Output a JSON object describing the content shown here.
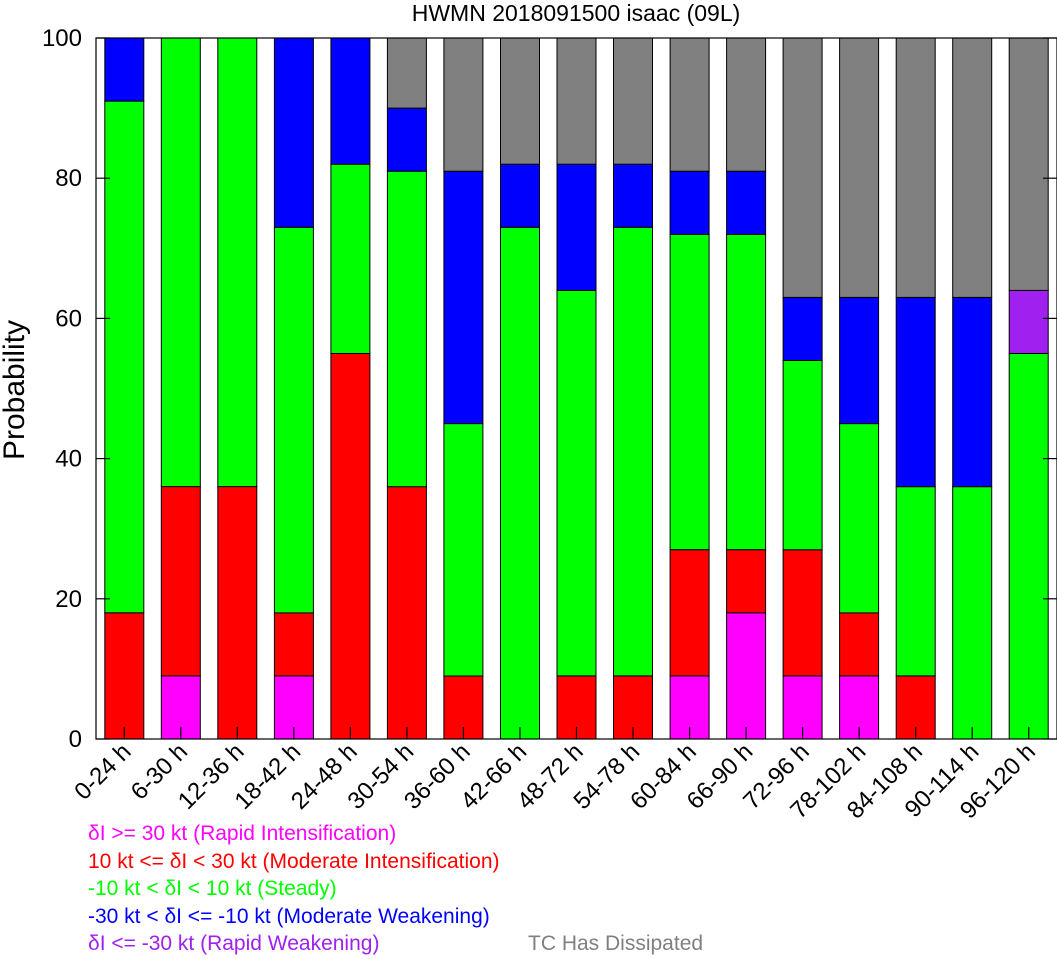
{
  "chart_data": {
    "type": "bar",
    "stacked": true,
    "title": "HWMN 2018091500 isaac (09L)",
    "xlabel": "",
    "ylabel": "Probability",
    "ylim": [
      0,
      100
    ],
    "yticks": [
      "0",
      "20",
      "40",
      "60",
      "80",
      "100"
    ],
    "grid": false,
    "categories": [
      "0-24 h",
      "6-30 h",
      "12-36 h",
      "18-42 h",
      "24-48 h",
      "30-54 h",
      "36-60 h",
      "42-66 h",
      "48-72 h",
      "54-78 h",
      "60-84 h",
      "66-90 h",
      "72-96 h",
      "78-102 h",
      "84-108 h",
      "90-114 h",
      "96-120 h"
    ],
    "series": [
      {
        "name": "δI >= 30 kt (Rapid Intensification)",
        "color": "#ff00ff",
        "values": [
          0,
          9,
          0,
          9,
          0,
          0,
          0,
          0,
          0,
          0,
          9,
          18,
          9,
          9,
          0,
          0,
          0
        ]
      },
      {
        "name": "10 kt <= δI < 30 kt (Moderate Intensification)",
        "color": "#ff0000",
        "values": [
          18,
          27,
          36,
          9,
          55,
          36,
          9,
          0,
          9,
          9,
          18,
          9,
          18,
          9,
          9,
          0,
          0
        ]
      },
      {
        "name": "-10 kt < δI < 10 kt (Steady)",
        "color": "#00ff00",
        "values": [
          73,
          64,
          64,
          55,
          27,
          45,
          36,
          73,
          55,
          64,
          45,
          45,
          27,
          27,
          27,
          36,
          55
        ]
      },
      {
        "name": "-30 kt < δI <= -10 kt (Moderate Weakening)",
        "color": "#0000ff",
        "values": [
          9,
          0,
          0,
          27,
          18,
          9,
          36,
          9,
          18,
          9,
          9,
          9,
          9,
          18,
          27,
          27,
          0
        ]
      },
      {
        "name": "δI <= -30 kt (Rapid Weakening)",
        "color": "#a020f0",
        "values": [
          0,
          0,
          0,
          0,
          0,
          0,
          0,
          0,
          0,
          0,
          0,
          0,
          0,
          0,
          0,
          0,
          9
        ]
      },
      {
        "name": "TC Has Dissipated",
        "color": "#808080",
        "values": [
          0,
          0,
          0,
          0,
          0,
          10,
          19,
          18,
          18,
          18,
          19,
          19,
          37,
          37,
          37,
          37,
          36
        ]
      }
    ]
  },
  "legend": {
    "ri": {
      "text": "δI >= 30 kt (Rapid Intensification)",
      "color": "#ff00ff"
    },
    "mi": {
      "text": "10 kt <= δI < 30 kt (Moderate Intensification)",
      "color": "#ff0000"
    },
    "st": {
      "text": "-10 kt < δI < 10 kt (Steady)",
      "color": "#00ff00"
    },
    "mw": {
      "text": "-30 kt < δI <= -10 kt (Moderate Weakening)",
      "color": "#0000ff"
    },
    "rw": {
      "text": "δI <= -30 kt (Rapid Weakening)",
      "color": "#a020f0"
    },
    "dis": {
      "text": "TC Has Dissipated",
      "color": "#808080"
    }
  }
}
